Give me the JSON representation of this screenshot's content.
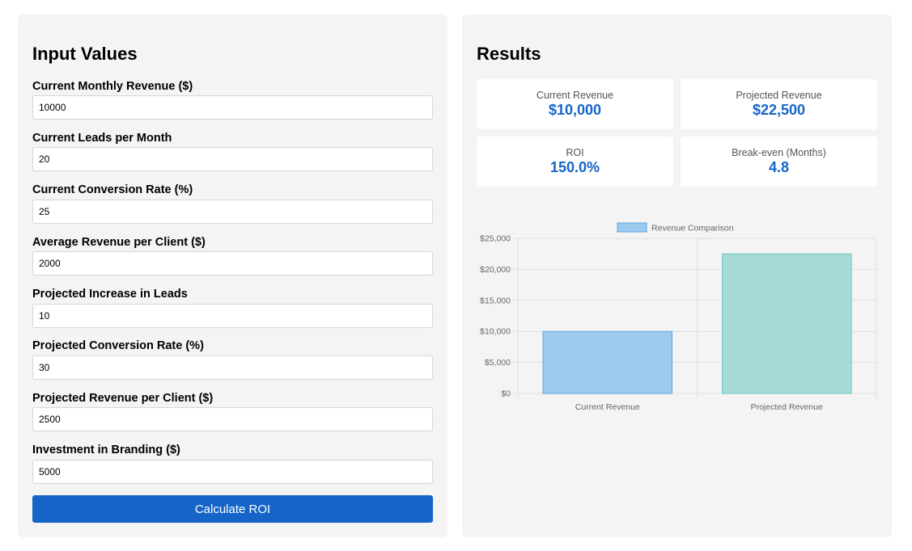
{
  "inputs": {
    "title": "Input Values",
    "fields": [
      {
        "label": "Current Monthly Revenue ($)",
        "value": "10000"
      },
      {
        "label": "Current Leads per Month",
        "value": "20"
      },
      {
        "label": "Current Conversion Rate (%)",
        "value": "25"
      },
      {
        "label": "Average Revenue per Client ($)",
        "value": "2000"
      },
      {
        "label": "Projected Increase in Leads",
        "value": "10"
      },
      {
        "label": "Projected Conversion Rate (%)",
        "value": "30"
      },
      {
        "label": "Projected Revenue per Client ($)",
        "value": "2500"
      },
      {
        "label": "Investment in Branding ($)",
        "value": "5000"
      }
    ],
    "button_label": "Calculate ROI"
  },
  "results": {
    "title": "Results",
    "cards": [
      {
        "label": "Current Revenue",
        "value": "$10,000"
      },
      {
        "label": "Projected Revenue",
        "value": "$22,500"
      },
      {
        "label": "ROI",
        "value": "150.0%"
      },
      {
        "label": "Break-even (Months)",
        "value": "4.8"
      }
    ]
  },
  "chart_data": {
    "type": "bar",
    "title": "",
    "categories": [
      "Current Revenue",
      "Projected Revenue"
    ],
    "series": [
      {
        "name": "Revenue Comparison",
        "values": [
          10000,
          22500
        ],
        "colors": [
          "#9ecaee",
          "#a6dbd9"
        ],
        "borders": [
          "#5aa8e6",
          "#6cc5c0"
        ]
      }
    ],
    "ylim": [
      0,
      25000
    ],
    "yticks": [
      0,
      5000,
      10000,
      15000,
      20000,
      25000
    ],
    "ytick_labels": [
      "$0",
      "$5,000",
      "$10,000",
      "$15,000",
      "$20,000",
      "$25,000"
    ],
    "legend": "top",
    "grid": true
  }
}
